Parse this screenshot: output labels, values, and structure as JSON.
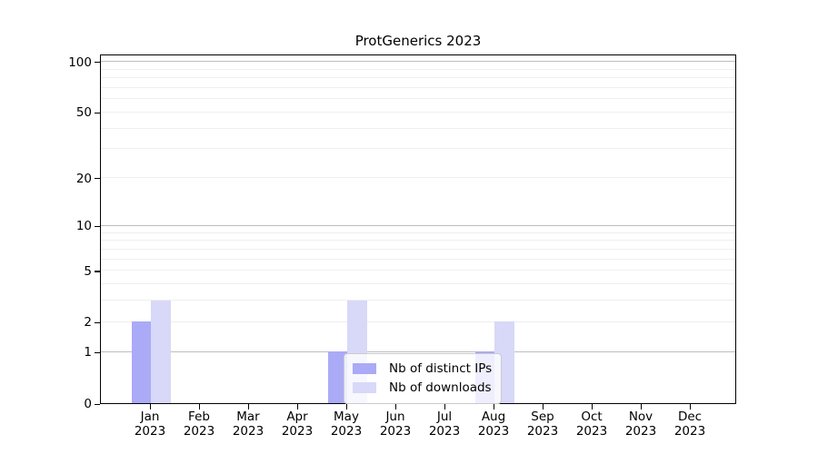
{
  "title": "ProtGenerics 2023",
  "y_axis": {
    "tick_labels": [
      "0",
      "1",
      "2",
      "5",
      "10",
      "20",
      "50",
      "100"
    ]
  },
  "x_axis": {
    "year": "2023",
    "months": [
      "Jan",
      "Feb",
      "Mar",
      "Apr",
      "May",
      "Jun",
      "Jul",
      "Aug",
      "Sep",
      "Oct",
      "Nov",
      "Dec"
    ]
  },
  "colors": {
    "distinct_ips_bar": "#aaaaf7",
    "downloads_bar": "#d8d8f8",
    "major_gridline": "#bdbdbd",
    "minor_gridline": "#efefef"
  },
  "chart_data": {
    "type": "bar",
    "title": "ProtGenerics 2023",
    "categories": [
      "Jan 2023",
      "Feb 2023",
      "Mar 2023",
      "Apr 2023",
      "May 2023",
      "Jun 2023",
      "Jul 2023",
      "Aug 2023",
      "Sep 2023",
      "Oct 2023",
      "Nov 2023",
      "Dec 2023"
    ],
    "series": [
      {
        "name": "Nb of distinct IPs",
        "color": "#aaaaf7",
        "values": [
          2,
          0,
          0,
          0,
          1,
          0,
          0,
          1,
          0,
          0,
          0,
          0
        ]
      },
      {
        "name": "Nb of downloads",
        "color": "#d8d8f8",
        "values": [
          3,
          0,
          0,
          0,
          3,
          0,
          0,
          2,
          0,
          0,
          0,
          0
        ]
      }
    ],
    "xlabel": "",
    "ylabel": "",
    "yscale": "log1p",
    "ylim": [
      0,
      112
    ],
    "yticks": [
      0,
      1,
      2,
      5,
      10,
      20,
      50,
      100
    ],
    "grid": {
      "major": [
        1,
        10,
        100
      ],
      "minor": [
        2,
        3,
        4,
        5,
        6,
        7,
        8,
        9,
        20,
        30,
        40,
        50,
        60,
        70,
        80,
        90
      ]
    },
    "legend_position": "lower center"
  }
}
